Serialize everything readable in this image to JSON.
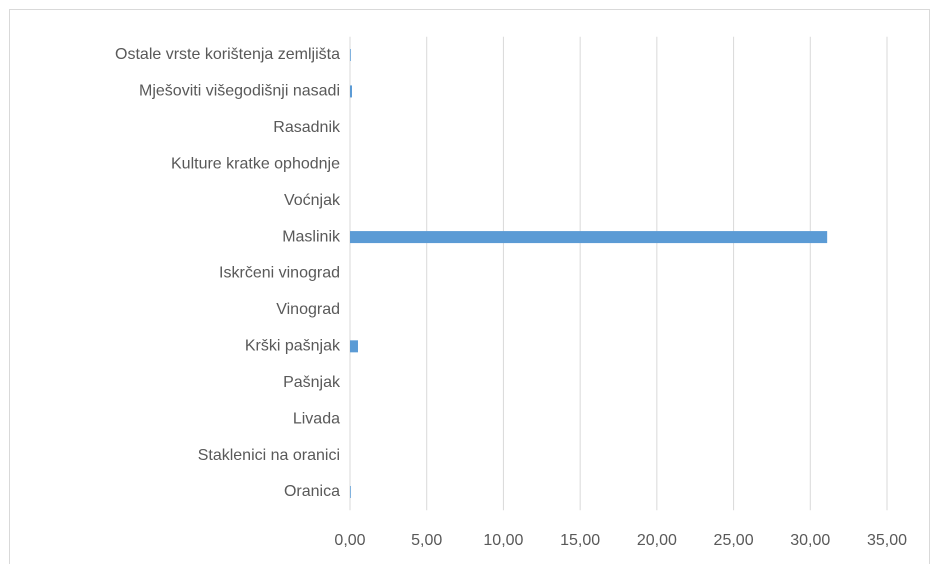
{
  "chart_data": {
    "type": "hbar",
    "categories": [
      "Ostale vrste korištenja zemljišta",
      "Mješoviti višegodišnji nasadi",
      "Rasadnik",
      "Kulture kratke ophodnje",
      "Voćnjak",
      "Maslinik",
      "Iskrčeni vinograd",
      "Vinograd",
      "Krški pašnjak",
      "Pašnjak",
      "Livada",
      "Staklenici na oranici",
      "Oranica"
    ],
    "values": [
      0.05,
      0.13,
      0,
      0,
      0,
      31.1,
      0,
      0,
      0.52,
      0,
      0,
      0,
      0.05
    ],
    "color": "#5b9bd5",
    "xlim": [
      0,
      35
    ],
    "xticks": [
      {
        "value": 0,
        "label": "0,00"
      },
      {
        "value": 5,
        "label": "5,00"
      },
      {
        "value": 10,
        "label": "10,00"
      },
      {
        "value": 15,
        "label": "15,00"
      },
      {
        "value": 20,
        "label": "20,00"
      },
      {
        "value": 25,
        "label": "25,00"
      },
      {
        "value": 30,
        "label": "30,00"
      },
      {
        "value": 35,
        "label": "35,00"
      }
    ],
    "grid": true
  }
}
